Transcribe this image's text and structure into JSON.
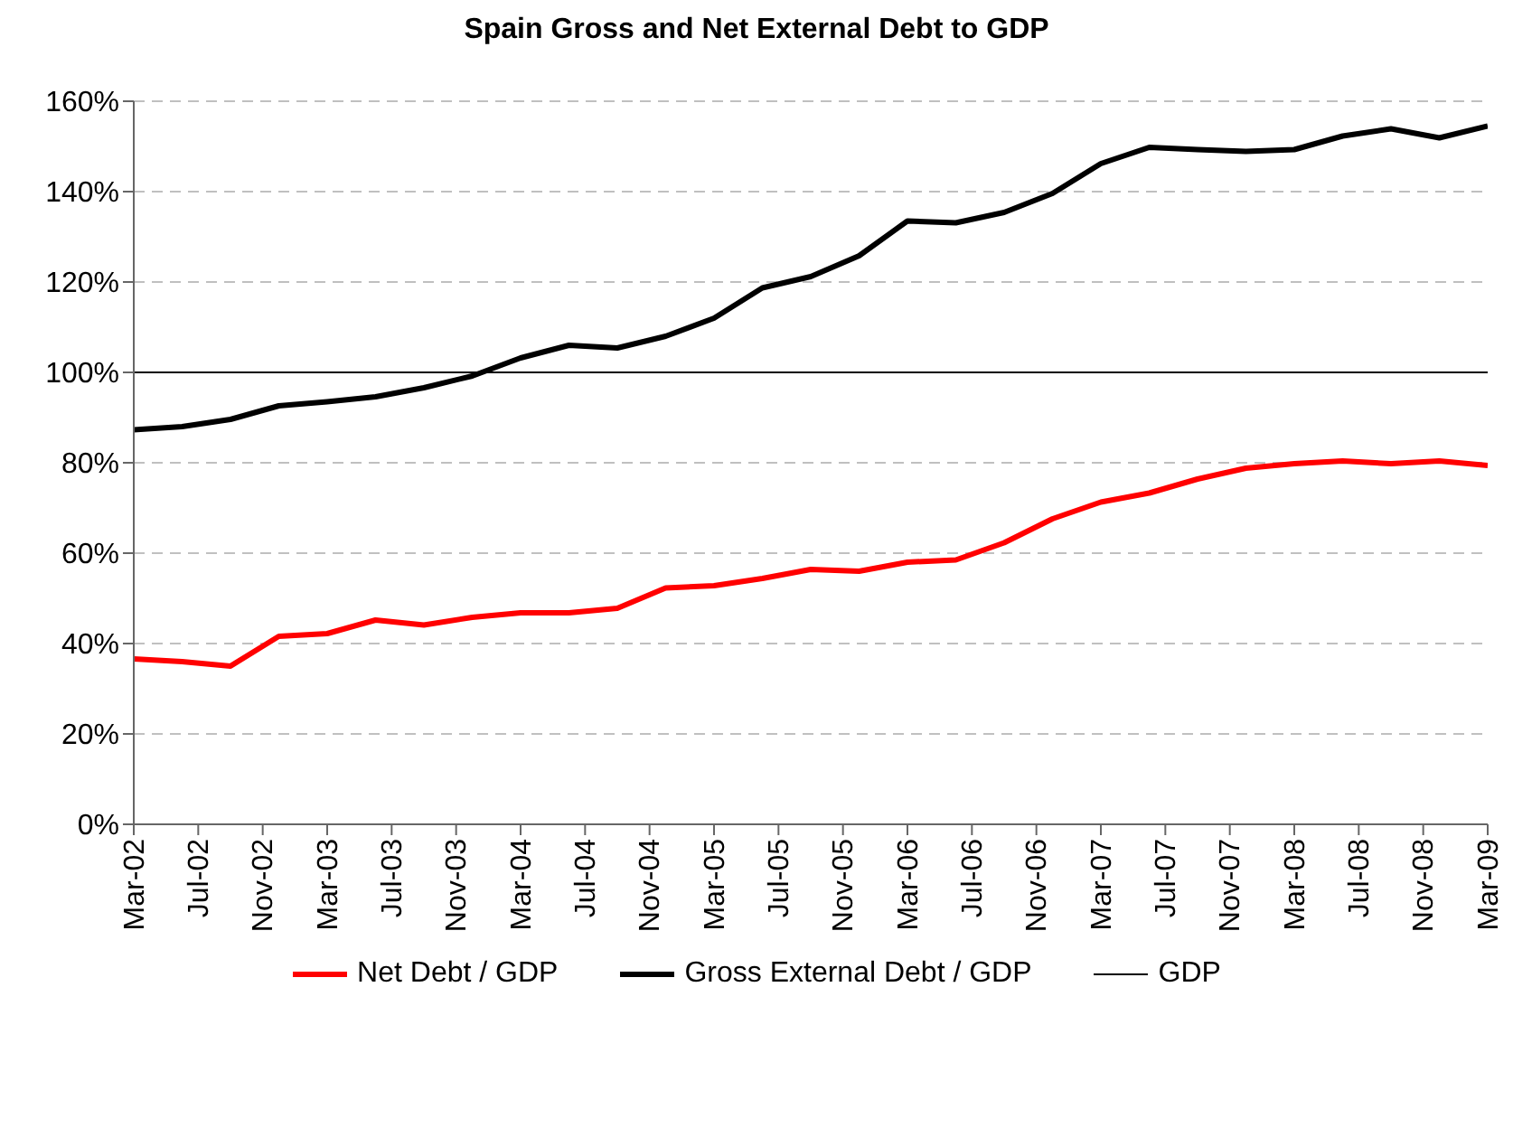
{
  "chart_data": {
    "type": "line",
    "title": "Spain Gross and Net External Debt to GDP",
    "x": [
      "2002-03",
      "2002-06",
      "2002-09",
      "2002-12",
      "2003-03",
      "2003-06",
      "2003-09",
      "2003-12",
      "2004-03",
      "2004-06",
      "2004-09",
      "2004-12",
      "2005-03",
      "2005-06",
      "2005-09",
      "2005-12",
      "2006-03",
      "2006-06",
      "2006-09",
      "2006-12",
      "2007-03",
      "2007-06",
      "2007-09",
      "2007-12",
      "2008-03",
      "2008-06",
      "2008-09",
      "2008-12",
      "2009-03"
    ],
    "series": [
      {
        "name": "Net Debt / GDP",
        "color": "#ff0000",
        "values": [
          36.6,
          36,
          35,
          41.6,
          42.2,
          45.2,
          44.1,
          45.8,
          46.8,
          46.8,
          47.8,
          52.3,
          52.8,
          54.4,
          56.4,
          56,
          58,
          58.5,
          62.3,
          67.6,
          71.3,
          73.3,
          76.4,
          78.8,
          79.8,
          80.4,
          79.8,
          80.4,
          79.4
        ]
      },
      {
        "name": "Gross External Debt / GDP",
        "color": "#000000",
        "values": [
          87.3,
          88,
          89.6,
          92.6,
          93.5,
          94.6,
          96.6,
          99.2,
          103.2,
          106,
          105.4,
          108,
          112,
          118.7,
          121.2,
          125.8,
          133.5,
          133.1,
          135.4,
          139.6,
          146.2,
          149.8,
          149.3,
          148.9,
          149.3,
          152.3,
          153.9,
          151.9,
          154.5
        ]
      }
    ],
    "ref_lines": [
      {
        "axis": "y",
        "value": 100,
        "label": "GDP",
        "color": "#000000"
      }
    ],
    "xlim": [
      "2002-03",
      "2009-03"
    ],
    "xticks": [
      {
        "value": "2002-03",
        "label": "Mar-02"
      },
      {
        "value": "2002-07",
        "label": "Jul-02"
      },
      {
        "value": "2002-11",
        "label": "Nov-02"
      },
      {
        "value": "2003-03",
        "label": "Mar-03"
      },
      {
        "value": "2003-07",
        "label": "Jul-03"
      },
      {
        "value": "2003-11",
        "label": "Nov-03"
      },
      {
        "value": "2004-03",
        "label": "Mar-04"
      },
      {
        "value": "2004-07",
        "label": "Jul-04"
      },
      {
        "value": "2004-11",
        "label": "Nov-04"
      },
      {
        "value": "2005-03",
        "label": "Mar-05"
      },
      {
        "value": "2005-07",
        "label": "Jul-05"
      },
      {
        "value": "2005-11",
        "label": "Nov-05"
      },
      {
        "value": "2006-03",
        "label": "Mar-06"
      },
      {
        "value": "2006-07",
        "label": "Jul-06"
      },
      {
        "value": "2006-11",
        "label": "Nov-06"
      },
      {
        "value": "2007-03",
        "label": "Mar-07"
      },
      {
        "value": "2007-07",
        "label": "Jul-07"
      },
      {
        "value": "2007-11",
        "label": "Nov-07"
      },
      {
        "value": "2008-03",
        "label": "Mar-08"
      },
      {
        "value": "2008-07",
        "label": "Jul-08"
      },
      {
        "value": "2008-11",
        "label": "Nov-08"
      },
      {
        "value": "2009-03",
        "label": "Mar-09"
      }
    ],
    "ylim": [
      0,
      160
    ],
    "yticks": [
      {
        "value": 0,
        "label": "0%"
      },
      {
        "value": 20,
        "label": "20%"
      },
      {
        "value": 40,
        "label": "40%"
      },
      {
        "value": 60,
        "label": "60%"
      },
      {
        "value": 80,
        "label": "80%"
      },
      {
        "value": 100,
        "label": "100%"
      },
      {
        "value": 120,
        "label": "120%"
      },
      {
        "value": 140,
        "label": "140%"
      },
      {
        "value": 160,
        "label": "160%"
      }
    ],
    "grid": "y",
    "legend": "bottom",
    "marker": "none",
    "line_style": "solid"
  }
}
